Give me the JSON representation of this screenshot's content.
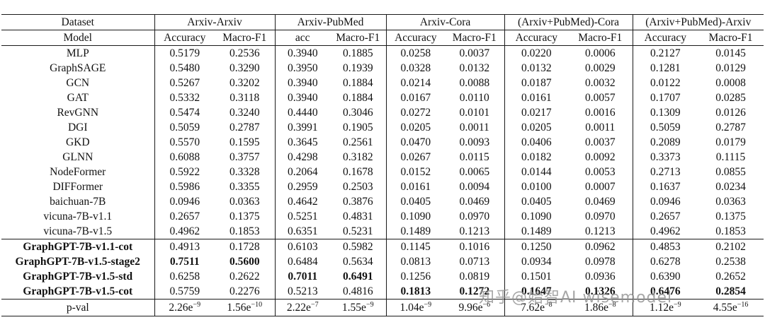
{
  "watermark": {
    "text": "知乎@始智AI wisemodel"
  },
  "table": {
    "groups": [
      {
        "label": "Dataset",
        "span": 1
      },
      {
        "label": "Arxiv-Arxiv",
        "span": 2
      },
      {
        "label": "Arxiv-PubMed",
        "span": 2
      },
      {
        "label": "Arxiv-Cora",
        "span": 2
      },
      {
        "label": "(Arxiv+PubMed)-Cora",
        "span": 2
      },
      {
        "label": "(Arxiv+PubMed)-Arxiv",
        "span": 2
      }
    ],
    "subheader": [
      "Model",
      "Accuracy",
      "Macro-F1",
      "acc",
      "Macro-F1",
      "Accuracy",
      "Macro-F1",
      "Accuracy",
      "Macro-F1",
      "Accuracy",
      "Macro-F1"
    ],
    "rows": [
      {
        "model": "MLP",
        "bold_model": false,
        "values": [
          "0.5179",
          "0.2536",
          "0.3940",
          "0.1885",
          "0.0258",
          "0.0037",
          "0.0220",
          "0.0006",
          "0.2127",
          "0.0145"
        ],
        "bold_values": [],
        "rule_after": false
      },
      {
        "model": "GraphSAGE",
        "bold_model": false,
        "values": [
          "0.5480",
          "0.3290",
          "0.3950",
          "0.1939",
          "0.0328",
          "0.0132",
          "0.0132",
          "0.0029",
          "0.1281",
          "0.0129"
        ],
        "bold_values": [],
        "rule_after": false
      },
      {
        "model": "GCN",
        "bold_model": false,
        "values": [
          "0.5267",
          "0.3202",
          "0.3940",
          "0.1884",
          "0.0214",
          "0.0088",
          "0.0187",
          "0.0032",
          "0.0122",
          "0.0008"
        ],
        "bold_values": [],
        "rule_after": false
      },
      {
        "model": "GAT",
        "bold_model": false,
        "values": [
          "0.5332",
          "0.3118",
          "0.3940",
          "0.1884",
          "0.0167",
          "0.0110",
          "0.0161",
          "0.0057",
          "0.1707",
          "0.0285"
        ],
        "bold_values": [],
        "rule_after": false
      },
      {
        "model": "RevGNN",
        "bold_model": false,
        "values": [
          "0.5474",
          "0.3240",
          "0.4440",
          "0.3046",
          "0.0272",
          "0.0101",
          "0.0217",
          "0.0016",
          "0.1309",
          "0.0126"
        ],
        "bold_values": [],
        "rule_after": false
      },
      {
        "model": "DGI",
        "bold_model": false,
        "values": [
          "0.5059",
          "0.2787",
          "0.3991",
          "0.1905",
          "0.0205",
          "0.0011",
          "0.0205",
          "0.0011",
          "0.5059",
          "0.2787"
        ],
        "bold_values": [],
        "rule_after": false
      },
      {
        "model": "GKD",
        "bold_model": false,
        "values": [
          "0.5570",
          "0.1595",
          "0.3645",
          "0.2561",
          "0.0470",
          "0.0093",
          "0.0406",
          "0.0037",
          "0.2089",
          "0.0179"
        ],
        "bold_values": [],
        "rule_after": false
      },
      {
        "model": "GLNN",
        "bold_model": false,
        "values": [
          "0.6088",
          "0.3757",
          "0.4298",
          "0.3182",
          "0.0267",
          "0.0115",
          "0.0182",
          "0.0092",
          "0.3373",
          "0.1115"
        ],
        "bold_values": [],
        "rule_after": false
      },
      {
        "model": "NodeFormer",
        "bold_model": false,
        "values": [
          "0.5922",
          "0.3328",
          "0.2064",
          "0.1678",
          "0.0152",
          "0.0065",
          "0.0144",
          "0.0053",
          "0.2713",
          "0.0855"
        ],
        "bold_values": [],
        "rule_after": false
      },
      {
        "model": "DIFFormer",
        "bold_model": false,
        "values": [
          "0.5986",
          "0.3355",
          "0.2959",
          "0.2503",
          "0.0161",
          "0.0094",
          "0.0100",
          "0.0007",
          "0.1637",
          "0.0234"
        ],
        "bold_values": [],
        "rule_after": false
      },
      {
        "model": "baichuan-7B",
        "bold_model": false,
        "values": [
          "0.0946",
          "0.0363",
          "0.4642",
          "0.3876",
          "0.0405",
          "0.0469",
          "0.0405",
          "0.0469",
          "0.0946",
          "0.0363"
        ],
        "bold_values": [],
        "rule_after": false
      },
      {
        "model": "vicuna-7B-v1.1",
        "bold_model": false,
        "values": [
          "0.2657",
          "0.1375",
          "0.5251",
          "0.4831",
          "0.1090",
          "0.0970",
          "0.1090",
          "0.0970",
          "0.2657",
          "0.1375"
        ],
        "bold_values": [],
        "rule_after": false
      },
      {
        "model": "vicuna-7B-v1.5",
        "bold_model": false,
        "values": [
          "0.4962",
          "0.1853",
          "0.6351",
          "0.5231",
          "0.1489",
          "0.1213",
          "0.1489",
          "0.1213",
          "0.4962",
          "0.1853"
        ],
        "bold_values": [],
        "rule_after": true
      },
      {
        "model": "GraphGPT-7B-v1.1-cot",
        "bold_model": true,
        "values": [
          "0.4913",
          "0.1728",
          "0.6103",
          "0.5982",
          "0.1145",
          "0.1016",
          "0.1250",
          "0.0962",
          "0.4853",
          "0.2102"
        ],
        "bold_values": [],
        "rule_after": false
      },
      {
        "model": "GraphGPT-7B-v1.5-stage2",
        "bold_model": true,
        "values": [
          "0.7511",
          "0.5600",
          "0.6484",
          "0.5634",
          "0.0813",
          "0.0713",
          "0.0934",
          "0.0978",
          "0.6278",
          "0.2538"
        ],
        "bold_values": [
          0,
          1
        ],
        "rule_after": false
      },
      {
        "model": "GraphGPT-7B-v1.5-std",
        "bold_model": true,
        "values": [
          "0.6258",
          "0.2622",
          "0.7011",
          "0.6491",
          "0.1256",
          "0.0819",
          "0.1501",
          "0.0936",
          "0.6390",
          "0.2652"
        ],
        "bold_values": [
          2,
          3
        ],
        "rule_after": false
      },
      {
        "model": "GraphGPT-7B-v1.5-cot",
        "bold_model": true,
        "values": [
          "0.5759",
          "0.2276",
          "0.5213",
          "0.4816",
          "0.1813",
          "0.1272",
          "0.1647",
          "0.1326",
          "0.6476",
          "0.2854"
        ],
        "bold_values": [
          4,
          5,
          6,
          7,
          8,
          9
        ],
        "rule_after": false
      }
    ],
    "pval": {
      "label": "p-val",
      "values": [
        {
          "m": "2.26e",
          "e": "−9"
        },
        {
          "m": "1.56e",
          "e": "−10"
        },
        {
          "m": "2.22e",
          "e": "−7"
        },
        {
          "m": "1.55e",
          "e": "−9"
        },
        {
          "m": "1.04e",
          "e": "−9"
        },
        {
          "m": "9.96e",
          "e": "−6"
        },
        {
          "m": "7.62e",
          "e": "−8"
        },
        {
          "m": "1.86e",
          "e": "−8"
        },
        {
          "m": "1.12e",
          "e": "−9"
        },
        {
          "m": "4.55e",
          "e": "−16"
        }
      ]
    }
  }
}
